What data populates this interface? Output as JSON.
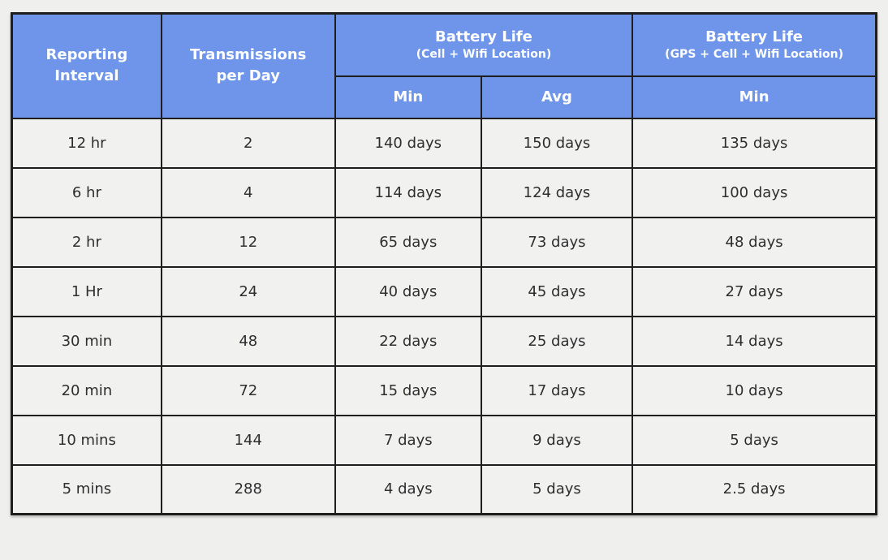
{
  "colors": {
    "header_blue": "#6e95ea",
    "border_dark": "#1e1e1e",
    "cell_background": "#f1f1f0",
    "page_background": "#efefed",
    "header_text": "#ffffff",
    "body_text": "#2e2e2e"
  },
  "display": {
    "header": {
      "reporting_interval": "Reporting\nInterval",
      "transmissions_per_day": "Transmissions\nper Day",
      "battery_cell": {
        "title": "Battery Life",
        "subtitle": "(Cell + Wifi Location)"
      },
      "battery_gps": {
        "title": "Battery Life",
        "subtitle": "(GPS + Cell + Wifi Location)"
      },
      "sub": {
        "min_cell": "Min",
        "avg_cell": "Avg",
        "min_gps": "Min"
      }
    }
  },
  "chart_data": {
    "type": "table",
    "column_groups": [
      {
        "label": "Reporting Interval",
        "span": 1,
        "subcolumns": []
      },
      {
        "label": "Transmissions per Day",
        "span": 1,
        "subcolumns": []
      },
      {
        "label": "Battery Life (Cell + Wifi Location)",
        "span": 2,
        "subcolumns": [
          "Min",
          "Avg"
        ]
      },
      {
        "label": "Battery Life (GPS + Cell + Wifi Location)",
        "span": 1,
        "subcolumns": [
          "Min"
        ]
      }
    ],
    "rows": [
      [
        "12 hr",
        "2",
        "140 days",
        "150 days",
        "135 days"
      ],
      [
        "6 hr",
        "4",
        "114 days",
        "124 days",
        "100 days"
      ],
      [
        "2 hr",
        "12",
        "65 days",
        "73 days",
        "48 days"
      ],
      [
        "1 Hr",
        "24",
        "40 days",
        "45 days",
        "27 days"
      ],
      [
        "30 min",
        "48",
        "22 days",
        "25 days",
        "14 days"
      ],
      [
        "20 min",
        "72",
        "15 days",
        "17 days",
        "10 days"
      ],
      [
        "10 mins",
        "144",
        "7 days",
        "9 days",
        "5 days"
      ],
      [
        "5 mins",
        "288",
        "4 days",
        "5 days",
        "2.5 days"
      ]
    ]
  }
}
